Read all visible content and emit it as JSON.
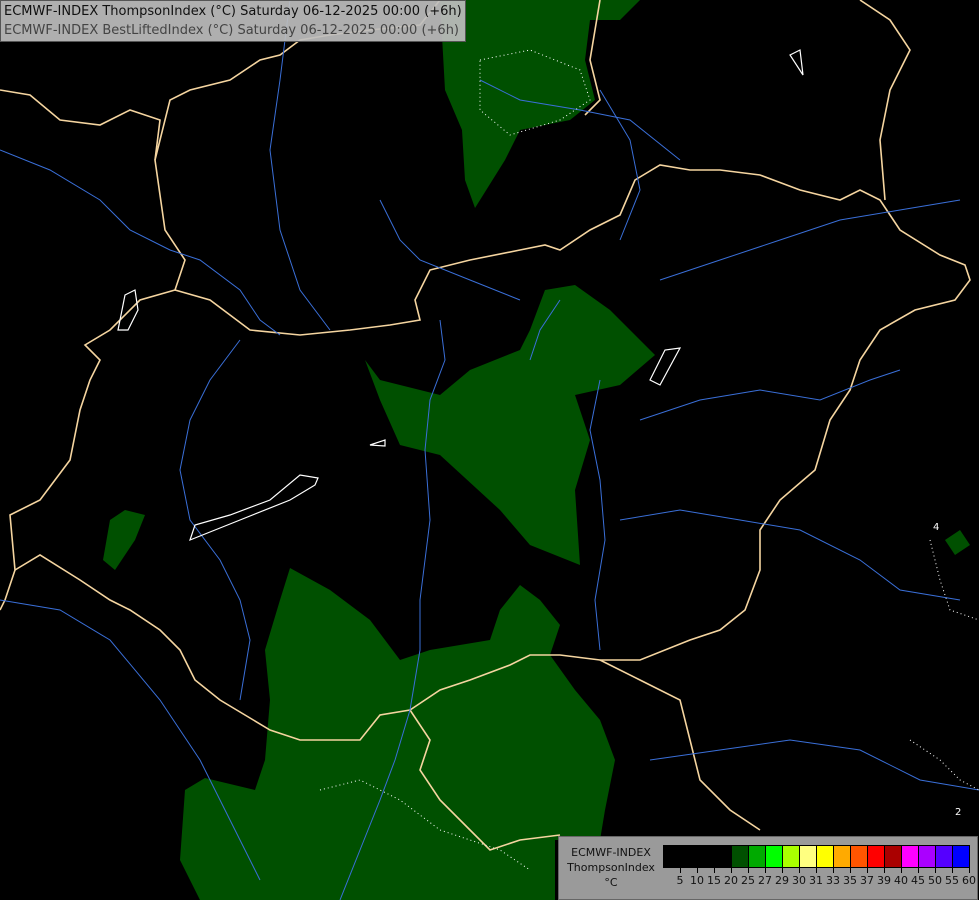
{
  "title": {
    "line1": "ECMWF-INDEX ThompsonIndex (°C) Saturday 06-12-2025 00:00 (+6h)",
    "line2": "ECMWF-INDEX BestLiftedIndex (°C) Saturday 06-12-2025 00:00 (+6h)"
  },
  "legend": {
    "model": "ECMWF-INDEX",
    "parameter": "ThompsonIndex",
    "unit": "°C",
    "colors": [
      "#000000",
      "#000000",
      "#000000",
      "#000000",
      "#005000",
      "#00aa00",
      "#00ff00",
      "#aaff00",
      "#ffff80",
      "#ffff00",
      "#ffaa00",
      "#ff5500",
      "#ff0000",
      "#aa0000",
      "#ff00ff",
      "#aa00ff",
      "#5500ff",
      "#0000ff"
    ],
    "ticks": [
      "5",
      "10",
      "15",
      "20",
      "25",
      "27",
      "29",
      "30",
      "31",
      "33",
      "35",
      "37",
      "39",
      "40",
      "45",
      "50",
      "55",
      "60"
    ]
  },
  "map_colors": {
    "background": "#000000",
    "fill": "#005000",
    "borders": "#f5d5a0",
    "rivers": "#3a6fd8",
    "contours": "#ffffff"
  },
  "contour_labels": [
    "4",
    "2"
  ]
}
